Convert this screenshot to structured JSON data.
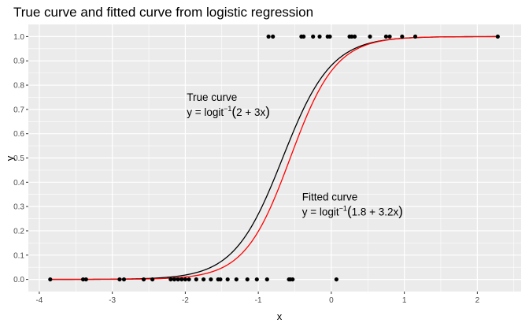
{
  "chart_data": {
    "type": "scatter",
    "title": "True curve and fitted curve from logistic regression",
    "xlabel": "x",
    "ylabel": "y",
    "xlim": [
      -4.15,
      2.6
    ],
    "ylim": [
      -0.05,
      1.05
    ],
    "x_ticks": [
      -4,
      -3,
      -2,
      -1,
      0,
      1,
      2
    ],
    "x_tick_labels": [
      "-4",
      "-3",
      "-2",
      "-1",
      "0",
      "1",
      "2"
    ],
    "y_ticks": [
      0,
      0.1,
      0.2,
      0.3,
      0.4,
      0.5,
      0.6,
      0.7,
      0.8,
      0.9,
      1.0
    ],
    "y_tick_labels": [
      "0.0",
      "0.1",
      "0.2",
      "0.3",
      "0.4",
      "0.5",
      "0.6",
      "0.7",
      "0.8",
      "0.9",
      "1.0"
    ],
    "grid": true,
    "points": {
      "x": [
        -3.85,
        -3.4,
        -3.36,
        -2.9,
        -2.84,
        -2.57,
        -2.45,
        -2.2,
        -2.15,
        -2.1,
        -2.05,
        -2.0,
        -1.95,
        -1.85,
        -1.75,
        -1.65,
        -1.55,
        -1.52,
        -1.42,
        -1.3,
        -1.15,
        -1.02,
        -0.88,
        -0.58,
        -0.56,
        -0.53,
        0.07,
        -0.86,
        -0.8,
        -0.41,
        -0.38,
        -0.25,
        -0.16,
        -0.05,
        -0.02,
        0.25,
        0.28,
        0.32,
        0.53,
        0.75,
        0.8,
        0.97,
        1.15,
        2.28
      ],
      "y": [
        0,
        0,
        0,
        0,
        0,
        0,
        0,
        0,
        0,
        0,
        0,
        0,
        0,
        0,
        0,
        0,
        0,
        0,
        0,
        0,
        0,
        0,
        0,
        0,
        0,
        0,
        0,
        1,
        1,
        1,
        1,
        1,
        1,
        1,
        1,
        1,
        1,
        1,
        1,
        1,
        1,
        1,
        1,
        1
      ]
    },
    "series": [
      {
        "name": "True curve",
        "intercept": 2,
        "slope": 3,
        "color": "#000000"
      },
      {
        "name": "Fitted curve",
        "intercept": 1.8,
        "slope": 3.2,
        "color": "#ff0000"
      }
    ],
    "annotations": [
      {
        "label": "True curve",
        "formula_prefix": "y = logit",
        "formula_sup": "−1",
        "formula_args": "2 + 3x",
        "x": -1.98,
        "y": 0.735
      },
      {
        "label": "Fitted curve",
        "formula_prefix": "y = logit",
        "formula_sup": "−1",
        "formula_args": "1.8 + 3.2x",
        "x": -0.4,
        "y": 0.325
      }
    ],
    "panel_color": "#ebebeb",
    "grid_color": "#ffffff",
    "point_color": "#000000"
  }
}
